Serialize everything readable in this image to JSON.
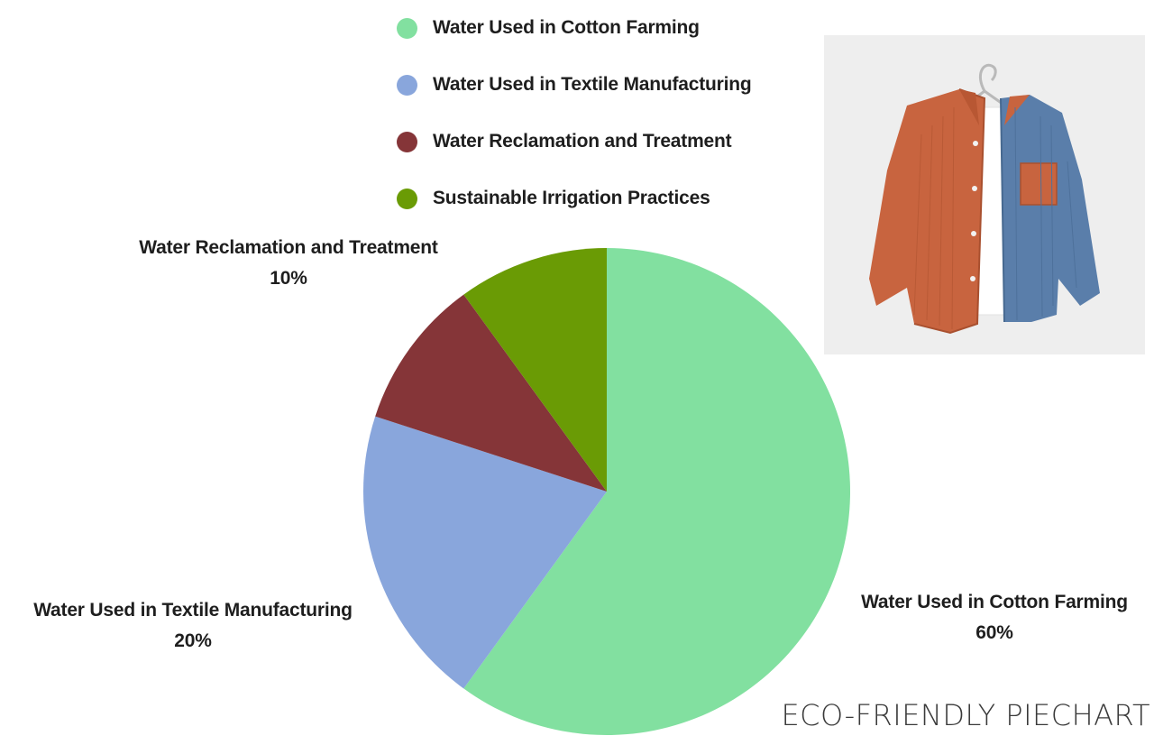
{
  "chart_data": {
    "type": "pie",
    "categories": [
      "Water Used in Cotton Farming",
      "Water Used in Textile Manufacturing",
      "Water Reclamation and Treatment",
      "Sustainable Irrigation Practices"
    ],
    "values": [
      60,
      20,
      10,
      10
    ],
    "colors": [
      "#82e0a0",
      "#89a6dc",
      "#853538",
      "#6a9b05"
    ],
    "legend": {
      "position": "top",
      "entries": [
        "Water Used in Cotton Farming",
        "Water Used in Textile Manufacturing",
        "Water Reclamation and Treatment",
        "Sustainable Irrigation Practices"
      ]
    },
    "data_labels": [
      {
        "name": "Water Used in Cotton Farming",
        "value": "60%"
      },
      {
        "name": "Water Used in Textile Manufacturing",
        "value": "20%"
      },
      {
        "name": "Water Reclamation and Treatment",
        "value": "10%"
      }
    ]
  },
  "photo": {
    "icon": "shirt-on-hanger-icon",
    "colors": {
      "left_panel": "#c8643f",
      "right_panel": "#5a7eaa",
      "undershirt": "#ffffff",
      "background": "#eeeeee"
    }
  },
  "caption": "ECO-FRIENDLY PIECHART"
}
